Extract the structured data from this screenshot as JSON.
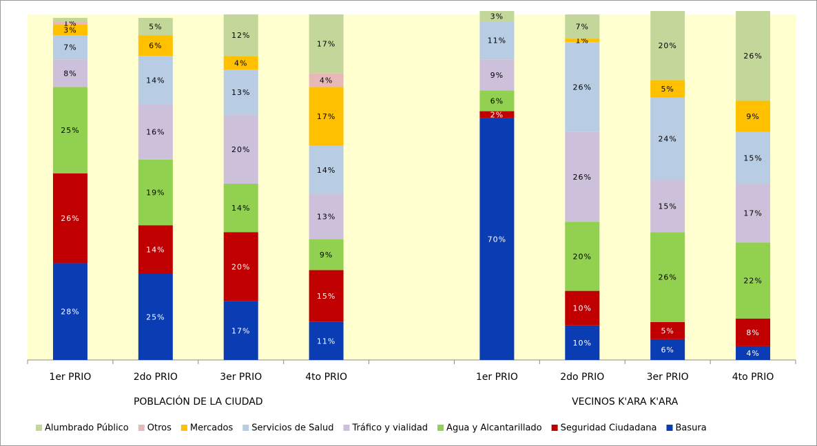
{
  "chart_data": {
    "type": "stacked_bar",
    "categories": [
      "1er PRIO",
      "2do PRIO",
      "3er PRIO",
      "4to PRIO",
      null,
      "1er PRIO",
      "2do PRIO",
      "3er PRIO",
      "4to PRIO"
    ],
    "annotations": [
      "POBLACIÓN DE LA CIUDAD",
      "VECINOS K'ARA K'ARA"
    ],
    "ylim": [
      0,
      100
    ],
    "legend": "bottom",
    "plot_background": "#ffffd0",
    "series": [
      {
        "name": "Basura",
        "color": "#0a3cb4",
        "label_color": "#ffffff",
        "values": [
          28,
          25,
          17,
          11,
          null,
          70,
          10,
          6,
          4
        ],
        "value_labels": [
          "28%",
          "25%",
          "17%",
          "11%",
          null,
          "70%",
          "10%",
          "6%",
          "4%"
        ]
      },
      {
        "name": "Seguridad Ciudadana",
        "color": "#c00000",
        "label_color": "#ffffff",
        "values": [
          26,
          14,
          20,
          15,
          null,
          2,
          10,
          5,
          8
        ],
        "value_labels": [
          "26%",
          "14%",
          "20%",
          "15%",
          null,
          "2%",
          "10%",
          "5%",
          "8%"
        ]
      },
      {
        "name": "Agua y Alcantarillado",
        "color": "#92d050",
        "label_color": "#000000",
        "values": [
          25,
          19,
          14,
          9,
          null,
          6,
          20,
          26,
          22
        ],
        "value_labels": [
          "25%",
          "19%",
          "14%",
          "9%",
          null,
          "6%",
          "20%",
          "26%",
          "22%"
        ]
      },
      {
        "name": "Tráfico y vialidad",
        "color": "#ccc0da",
        "label_color": "#000000",
        "values": [
          8,
          16,
          20,
          13,
          null,
          9,
          26,
          15,
          17
        ],
        "value_labels": [
          "8%",
          "16%",
          "20%",
          "13%",
          null,
          "9%",
          "26%",
          "15%",
          "17%"
        ]
      },
      {
        "name": "Servicios de Salud",
        "color": "#b8cce4",
        "label_color": "#000000",
        "values": [
          7,
          14,
          13,
          14,
          null,
          11,
          26,
          24,
          15
        ],
        "value_labels": [
          "7%",
          "14%",
          "13%",
          "14%",
          null,
          "11%",
          "26%",
          "24%",
          "15%"
        ]
      },
      {
        "name": "Mercados",
        "color": "#ffc000",
        "label_color": "#000000",
        "values": [
          3,
          6,
          4,
          17,
          null,
          0,
          1,
          5,
          9
        ],
        "value_labels": [
          "3%",
          "6%",
          "4%",
          "17%",
          null,
          null,
          "1%",
          "5%",
          "9%"
        ]
      },
      {
        "name": "Otros",
        "color": "#e6b9b8",
        "label_color": "#000000",
        "values": [
          1,
          0,
          0,
          4,
          null,
          0,
          0,
          0,
          0
        ],
        "value_labels": [
          "1%",
          null,
          null,
          "4%",
          null,
          null,
          null,
          null,
          null
        ]
      },
      {
        "name": "Alumbrado Público",
        "color": "#c4d79b",
        "label_color": "#000000",
        "values": [
          1,
          5,
          12,
          17,
          null,
          3,
          7,
          20,
          26
        ],
        "value_labels": [
          null,
          "5%",
          "12%",
          "17%",
          null,
          "3%",
          "7%",
          "20%",
          "26%"
        ]
      }
    ]
  }
}
